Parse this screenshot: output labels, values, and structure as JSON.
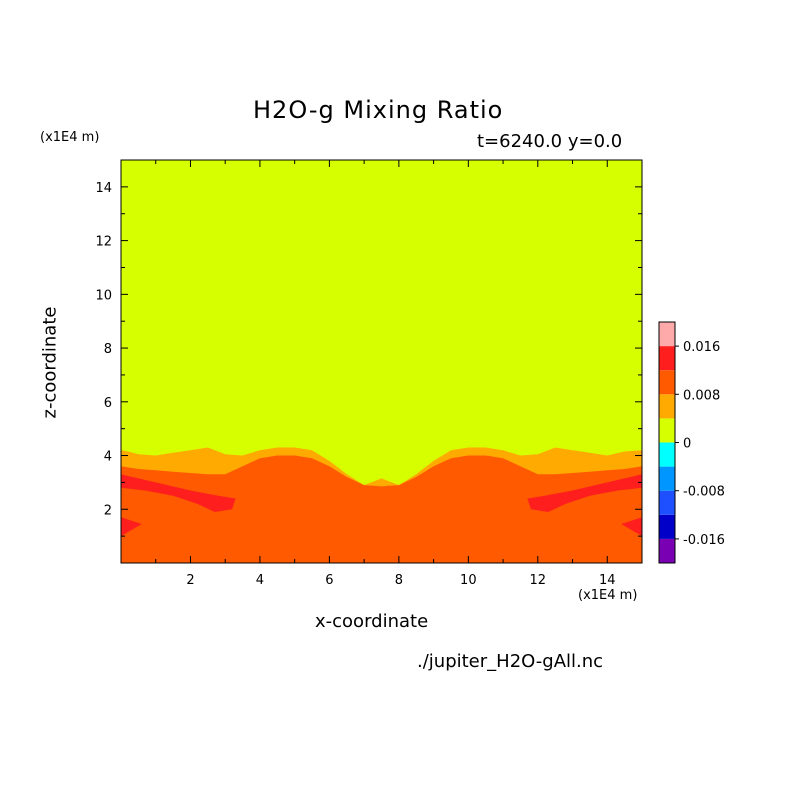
{
  "chart_data": {
    "type": "heatmap",
    "title": "H2O-g Mixing Ratio",
    "subtitle": "t=6240.0 y=0.0",
    "xlabel": "x-coordinate",
    "ylabel": "z-coordinate",
    "x_unit": "(x1E4 m)",
    "z_unit": "(x1E4 m)",
    "filename": "./jupiter_H2O-gAll.nc",
    "xlim": [
      0,
      15
    ],
    "zlim": [
      0,
      15
    ],
    "x_ticks": [
      "2",
      "4",
      "6",
      "8",
      "10",
      "12",
      "14"
    ],
    "z_ticks": [
      "2",
      "4",
      "6",
      "8",
      "10",
      "12",
      "14"
    ],
    "colorbar": {
      "levels": [
        -0.02,
        -0.016,
        -0.012,
        -0.008,
        -0.004,
        0,
        0.004,
        0.008,
        0.012,
        0.016,
        0.02
      ],
      "colors": [
        "#7a00b4",
        "#0000c8",
        "#1e50ff",
        "#0096ff",
        "#00ffff",
        "#d6ff00",
        "#ffaa00",
        "#ff5a00",
        "#ff1e1e",
        "#ffaaaa"
      ],
      "tick_values": [
        0.016,
        0.008,
        0,
        -0.008,
        -0.016
      ],
      "tick_labels": [
        "0.016",
        "0.008",
        "0",
        "-0.008",
        "-0.016"
      ]
    },
    "contour_fields": {
      "level_0.004_top": {
        "x": [
          0,
          0.2,
          0.5,
          1,
          1.5,
          2,
          2.5,
          3,
          3.5,
          4,
          4.5,
          5,
          5.5,
          6,
          6.5,
          7,
          7.5,
          8,
          8.5,
          9,
          9.5,
          10,
          10.5,
          11,
          11.5,
          12,
          12.5,
          13,
          13.5,
          14,
          14.5,
          15
        ],
        "z": [
          4.2,
          4.15,
          4.05,
          4.0,
          4.1,
          4.2,
          4.3,
          4.05,
          4.0,
          4.2,
          4.3,
          4.3,
          4.2,
          3.8,
          3.3,
          2.9,
          3.15,
          2.9,
          3.3,
          3.8,
          4.2,
          4.3,
          4.3,
          4.2,
          4.0,
          4.05,
          4.3,
          4.2,
          4.1,
          4.0,
          4.15,
          4.2
        ]
      },
      "level_0.008_top": {
        "x": [
          0,
          0.5,
          1,
          1.5,
          2,
          2.5,
          3,
          3.5,
          4,
          4.5,
          5,
          5.5,
          6,
          6.5,
          7,
          7.5,
          8,
          8.5,
          9,
          9.5,
          10,
          10.5,
          11,
          11.5,
          12,
          12.5,
          13,
          13.5,
          14,
          14.5,
          15
        ],
        "z": [
          3.6,
          3.5,
          3.45,
          3.4,
          3.35,
          3.3,
          3.3,
          3.6,
          3.9,
          4.0,
          4.0,
          3.9,
          3.6,
          3.2,
          2.9,
          2.85,
          2.9,
          3.2,
          3.6,
          3.9,
          4.0,
          4.0,
          3.9,
          3.6,
          3.3,
          3.3,
          3.35,
          3.4,
          3.45,
          3.5,
          3.6
        ]
      }
    }
  }
}
